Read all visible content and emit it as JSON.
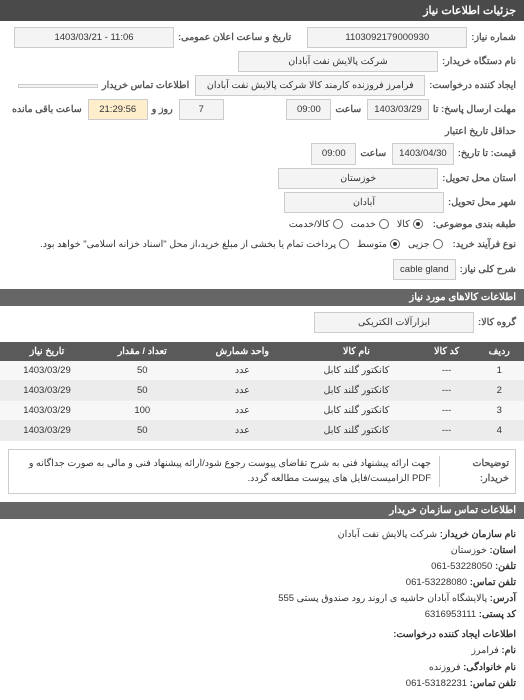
{
  "header": {
    "title": "جزئیات اطلاعات نیاز"
  },
  "form": {
    "reg_no_label": "شماره نیاز:",
    "reg_no": "1103092179000930",
    "public_date_label": "تاریخ و ساعت اعلان عمومی:",
    "public_date": "1403/03/21 - 11:06",
    "buyer_name_label": "نام دستگاه خریدار:",
    "buyer_name": "شرکت پالایش نفت آبادان",
    "requester_label": "ایجاد کننده درخواست:",
    "requester": "فرامرز فروزنده کارمند کالا شرکت پالایش نفت آبادان",
    "contact_info_label": "اطلاعات تماس خریدار",
    "contact_info": "",
    "deadline_label": "مهلت ارسال پاسخ: تا",
    "deadline_date": "1403/03/29",
    "time_label": "ساعت",
    "deadline_time": "09:00",
    "day_label": "روز و",
    "days_remaining": "7",
    "remaining_label": "ساعت باقی مانده",
    "remaining_time": "21:29:56",
    "validity_label": "حداقل تاریخ اعتبار",
    "validity_end_label": "قیمت: تا تاریخ:",
    "validity_date": "1403/04/30",
    "validity_time": "09:00",
    "province_label": "استان محل تحویل:",
    "province": "خوزستان",
    "city_label": "شهر محل تحویل:",
    "city": "آبادان",
    "subject_class_label": "طبقه بندی موضوعی:",
    "radio_goods": "کالا",
    "radio_service": "خدمت",
    "radio_goods_service": "کالا/خدمت",
    "process_label": "نوع فرآیند خرید:",
    "radio_small": "جزیی",
    "radio_medium": "متوسط",
    "process_note": "پرداخت تمام یا بخشی از مبلغ خرید،از محل \"اسناد خزانه اسلامی\" خواهد بود.",
    "keyword_label": "شرح کلی نیاز:",
    "keyword": "cable gland"
  },
  "items_header": "اطلاعات کالاهای مورد نیاز",
  "group_label": "گروه کالا:",
  "group_value": "ابزارآلات الکتریکی",
  "table": {
    "columns": [
      "ردیف",
      "کد کالا",
      "نام کالا",
      "واحد شمارش",
      "تعداد / مقدار",
      "تاریخ نیاز"
    ],
    "rows": [
      [
        "1",
        "---",
        "کانکتور گلند کابل",
        "عدد",
        "50",
        "1403/03/29"
      ],
      [
        "2",
        "---",
        "کانکتور گلند کابل",
        "عدد",
        "50",
        "1403/03/29"
      ],
      [
        "3",
        "---",
        "کانکتور گلند کابل",
        "عدد",
        "100",
        "1403/03/29"
      ],
      [
        "4",
        "---",
        "کانکتور گلند کابل",
        "عدد",
        "50",
        "1403/03/29"
      ]
    ]
  },
  "note": {
    "label": "توضیحات خریدار:",
    "text": "جهت ارائه پیشنهاد فنی به شرح تقاضای پیوست رجوع شود/ارائه پیشنهاد فنی و مالی به صورت جداگانه و PDF الزامیست/فایل های پیوست مطالعه گردد."
  },
  "contact": {
    "header": "اطلاعات تماس سازمان خریدار",
    "org_label": "نام سازمان خریدار:",
    "org": "شرکت پالایش نفت آبادان",
    "province_label": "استان:",
    "province": "خوزستان",
    "phone_label": "تلفن:",
    "phone": "061-53228050",
    "fax_label": "تلفن تماس:",
    "fax": "061-53228080",
    "address_label": "آدرس:",
    "address": "پالایشگاه آبادان حاشیه ی اروند رود صندوق پستی 555",
    "postcode_label": "کد پستی:",
    "postcode": "6316953111",
    "req_contact_header": "اطلاعات ایجاد کننده درخواست:",
    "name_label": "نام:",
    "name": "فرامرز",
    "family_label": "نام خانوادگی:",
    "family": "فروزنده",
    "tel_label": "تلفن تماس:",
    "tel": "061-53182231"
  }
}
